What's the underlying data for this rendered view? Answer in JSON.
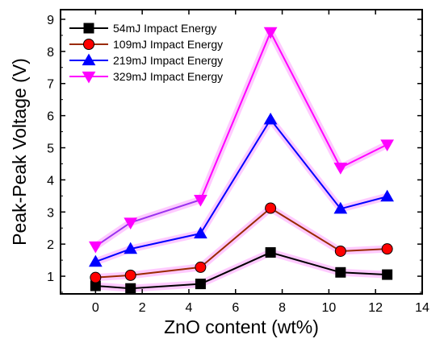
{
  "chart_data": {
    "type": "line",
    "title": "",
    "xlabel": "ZnO content (wt%)",
    "ylabel": "Peak-Peak Voltage (V)",
    "xlim": [
      -1.5,
      14
    ],
    "ylim": [
      0.45,
      9.3
    ],
    "x_ticks": [
      0,
      2,
      4,
      6,
      8,
      10,
      12,
      14
    ],
    "y_ticks": [
      1,
      2,
      3,
      4,
      5,
      6,
      7,
      8,
      9
    ],
    "grid": false,
    "legend_position": "top-left",
    "x": [
      0,
      1.5,
      4.5,
      7.5,
      10.5,
      12.5
    ],
    "series": [
      {
        "name": "54mJ Impact Energy",
        "marker": "square",
        "marker_color": "#000000",
        "line_color": "#000000",
        "glow_color": "#ff66ff",
        "values": [
          0.7,
          0.62,
          0.76,
          1.74,
          1.12,
          1.05
        ]
      },
      {
        "name": "109mJ Impact Energy",
        "marker": "circle",
        "marker_color": "#ff0000",
        "line_color": "#9a2a00",
        "glow_color": "#ff66ff",
        "values": [
          0.96,
          1.03,
          1.28,
          3.12,
          1.78,
          1.85
        ]
      },
      {
        "name": "219mJ Impact Energy",
        "marker": "triangle-up",
        "marker_color": "#0000ff",
        "line_color": "#0000ff",
        "glow_color": "#ff66ff",
        "values": [
          1.45,
          1.85,
          2.33,
          5.88,
          3.1,
          3.48
        ],
        "segment_colors": [
          "#0000ff",
          "#0000ff",
          "#0000ff",
          "#0000ff",
          "#0000ff"
        ]
      },
      {
        "name": "329mJ Impact Energy",
        "marker": "triangle-down",
        "marker_color": "#ff00ff",
        "line_color": "#ff00ff",
        "glow_color": "#ff66ff",
        "values": [
          1.93,
          2.67,
          3.38,
          8.6,
          4.38,
          5.1
        ],
        "segment_colors": [
          "#9933ee",
          "#9933ee",
          "#ff00ff",
          "#ff00ff",
          "#ff00ff"
        ]
      }
    ]
  }
}
